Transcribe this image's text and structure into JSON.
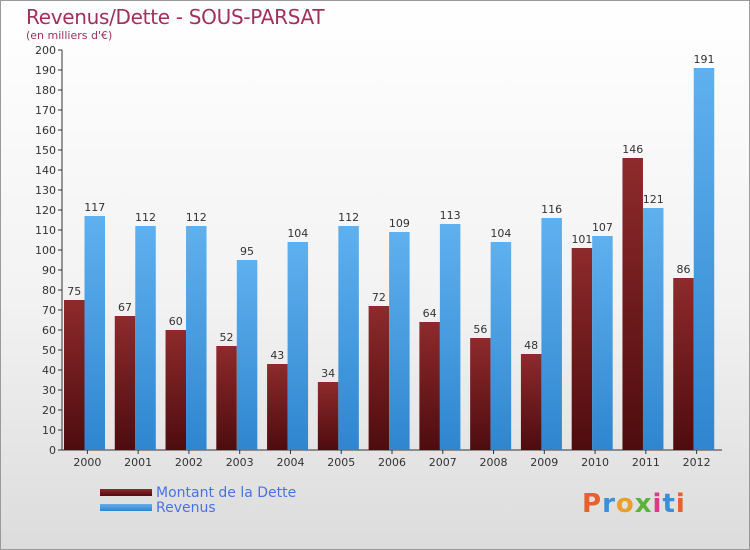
{
  "title": "Revenus/Dette - SOUS-PARSAT",
  "subtitle": "(en milliers d'€)",
  "colors": {
    "dette": "#7a1f22",
    "revenus": "#4a9fe3",
    "title": "#a1305d",
    "legend_text": "#4a72e3"
  },
  "legend": {
    "dette_label": "Montant de la Dette",
    "revenus_label": "Revenus"
  },
  "logo": {
    "text": "Proxiti",
    "letters": [
      "P",
      "r",
      "o",
      "x",
      "i",
      "t",
      "i"
    ],
    "letter_colors": [
      "#e8602c",
      "#3a8fd8",
      "#e8a02c",
      "#5bb33a",
      "#d93a8a",
      "#3a8fd8",
      "#e8602c"
    ]
  },
  "chart_data": {
    "type": "bar",
    "categories": [
      "2000",
      "2001",
      "2002",
      "2003",
      "2004",
      "2005",
      "2006",
      "2007",
      "2008",
      "2009",
      "2010",
      "2011",
      "2012"
    ],
    "series": [
      {
        "name": "Montant de la Dette",
        "values": [
          75,
          67,
          60,
          52,
          43,
          34,
          72,
          64,
          56,
          48,
          101,
          146,
          86
        ]
      },
      {
        "name": "Revenus",
        "values": [
          117,
          112,
          112,
          95,
          104,
          112,
          109,
          113,
          104,
          116,
          107,
          121,
          191
        ]
      }
    ],
    "ylim": [
      0,
      200
    ],
    "ytick_step": 10,
    "grid": false,
    "data_labels": true,
    "legend_position": "bottom-left"
  }
}
